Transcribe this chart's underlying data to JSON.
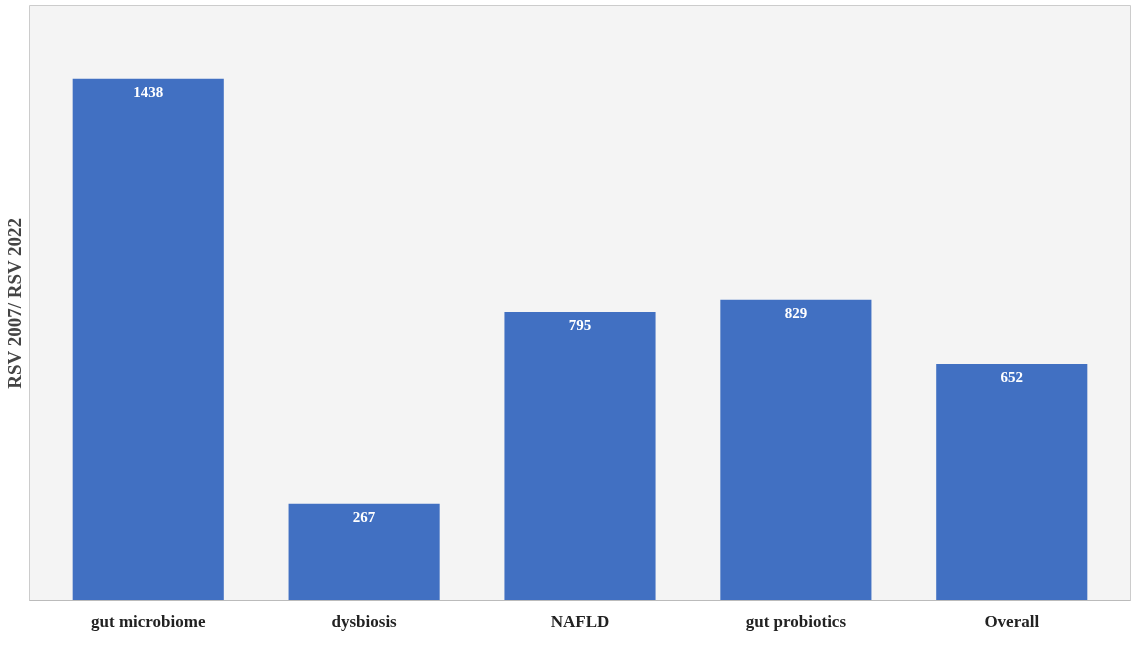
{
  "chart_data": {
    "type": "bar",
    "ylabel": "RSV 2007/ RSV 2022",
    "categories": [
      "gut microbiome",
      "dysbiosis",
      "NAFLD",
      "gut probiotics",
      "Overall"
    ],
    "values": [
      1438,
      267,
      795,
      829,
      652
    ],
    "color": "#4170c2",
    "ylim": [
      0,
      1640
    ],
    "data_labels": true,
    "grid": false,
    "tick_labels": "x"
  }
}
